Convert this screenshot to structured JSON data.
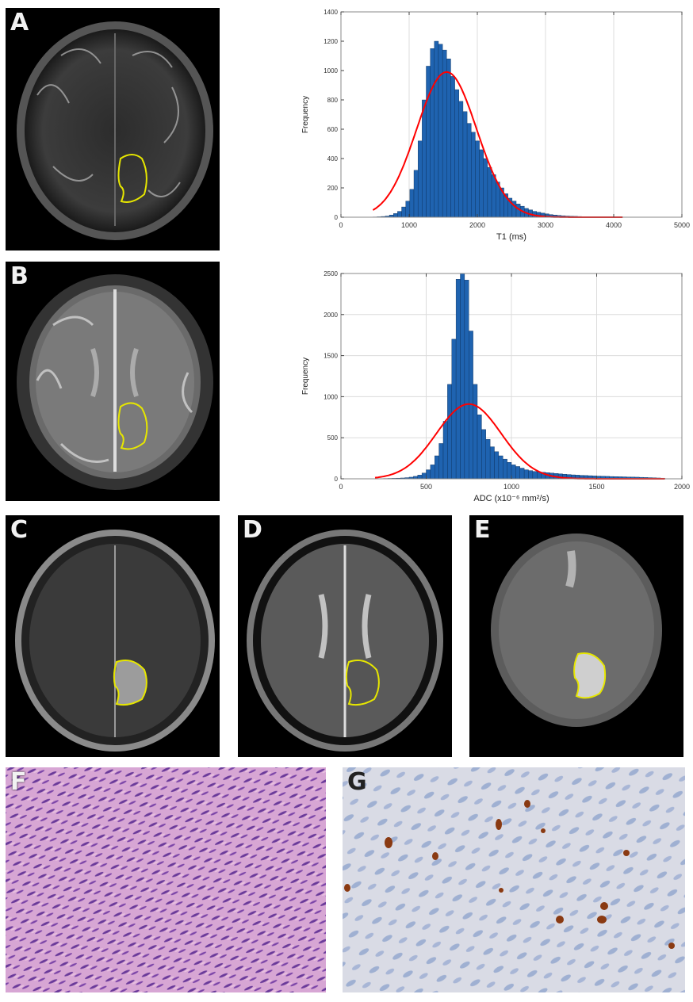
{
  "panels": {
    "A": {
      "label": "A"
    },
    "B": {
      "label": "B"
    },
    "C": {
      "label": "C"
    },
    "D": {
      "label": "D"
    },
    "E": {
      "label": "E"
    },
    "F": {
      "label": "F"
    },
    "G": {
      "label": "G"
    }
  },
  "chart_data": [
    {
      "type": "bar",
      "xlabel": "T1 (ms)",
      "ylabel": "Frequency",
      "xlim": [
        0,
        5000
      ],
      "ylim": [
        0,
        1400
      ],
      "xticks": [
        0,
        1000,
        2000,
        3000,
        4000,
        5000
      ],
      "yticks": [
        0,
        200,
        400,
        600,
        800,
        1000,
        1200,
        1400
      ],
      "grid": "vertical",
      "bar_color": "#1f63b0",
      "fit_color": "#ff0000",
      "bin_width": 60,
      "bin_centers": [
        500,
        560,
        620,
        680,
        740,
        800,
        860,
        920,
        980,
        1040,
        1100,
        1160,
        1220,
        1280,
        1340,
        1400,
        1460,
        1520,
        1580,
        1640,
        1700,
        1760,
        1820,
        1880,
        1940,
        2000,
        2060,
        2120,
        2180,
        2240,
        2300,
        2360,
        2420,
        2480,
        2540,
        2600,
        2660,
        2720,
        2780,
        2840,
        2900,
        2960,
        3020,
        3080,
        3140,
        3200,
        3260,
        3320,
        3380,
        3440,
        3500,
        3560,
        3620,
        3680,
        3740,
        3800,
        3860,
        3920,
        3980,
        4040,
        4100
      ],
      "values": [
        2,
        3,
        5,
        8,
        15,
        25,
        40,
        70,
        110,
        190,
        320,
        520,
        800,
        1030,
        1150,
        1200,
        1180,
        1140,
        1080,
        960,
        870,
        790,
        720,
        640,
        580,
        520,
        460,
        400,
        340,
        290,
        240,
        200,
        160,
        130,
        110,
        90,
        75,
        60,
        50,
        40,
        34,
        28,
        23,
        18,
        15,
        12,
        10,
        8,
        7,
        6,
        5,
        4,
        4,
        3,
        3,
        2,
        2,
        2,
        1,
        1,
        1
      ],
      "fit": {
        "type": "gaussian",
        "mean": 1550,
        "sd": 440,
        "peak": 990
      }
    },
    {
      "type": "bar",
      "xlabel": "ADC (x10⁻⁶ mm²/s)",
      "ylabel": "Frequency",
      "xlim": [
        0,
        2000
      ],
      "ylim": [
        0,
        2500
      ],
      "xticks": [
        0,
        500,
        1000,
        1500,
        2000
      ],
      "yticks": [
        0,
        500,
        1000,
        1500,
        2000,
        2500
      ],
      "grid": "both",
      "bar_color": "#1f63b0",
      "fit_color": "#ff0000",
      "bin_width": 25,
      "bin_centers": [
        212.5,
        237.5,
        262.5,
        287.5,
        312.5,
        337.5,
        362.5,
        387.5,
        412.5,
        437.5,
        462.5,
        487.5,
        512.5,
        537.5,
        562.5,
        587.5,
        612.5,
        637.5,
        662.5,
        687.5,
        712.5,
        737.5,
        762.5,
        787.5,
        812.5,
        837.5,
        862.5,
        887.5,
        912.5,
        937.5,
        962.5,
        987.5,
        1012.5,
        1037.5,
        1062.5,
        1087.5,
        1112.5,
        1137.5,
        1162.5,
        1187.5,
        1212.5,
        1237.5,
        1262.5,
        1287.5,
        1312.5,
        1337.5,
        1362.5,
        1387.5,
        1412.5,
        1437.5,
        1462.5,
        1487.5,
        1512.5,
        1537.5,
        1562.5,
        1587.5,
        1612.5,
        1637.5,
        1662.5,
        1687.5,
        1712.5,
        1737.5,
        1762.5,
        1787.5,
        1812.5,
        1837.5,
        1862.5,
        1887.5
      ],
      "values": [
        2,
        3,
        4,
        5,
        6,
        8,
        10,
        14,
        20,
        30,
        45,
        70,
        110,
        170,
        280,
        430,
        700,
        1150,
        1700,
        2430,
        2500,
        2420,
        1800,
        1150,
        780,
        600,
        480,
        390,
        330,
        280,
        240,
        200,
        170,
        150,
        130,
        110,
        100,
        90,
        85,
        80,
        75,
        70,
        65,
        60,
        56,
        52,
        48,
        45,
        42,
        40,
        38,
        35,
        33,
        32,
        30,
        28,
        27,
        25,
        24,
        22,
        21,
        20,
        18,
        16,
        14,
        12,
        10,
        8
      ],
      "fit": {
        "type": "gaussian",
        "mean": 750,
        "sd": 190,
        "peak": 910
      }
    }
  ]
}
